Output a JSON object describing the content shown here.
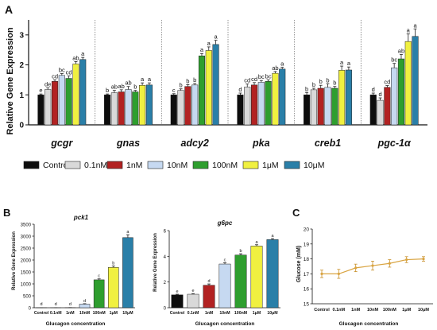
{
  "legend": {
    "items": [
      {
        "label": "Control",
        "color": "#0d0d0d"
      },
      {
        "label": "0.1nM",
        "color": "#d9d9d9"
      },
      {
        "label": "1nM",
        "color": "#b22222"
      },
      {
        "label": "10nM",
        "color": "#c6d9f1"
      },
      {
        "label": "100nM",
        "color": "#2e9e2e"
      },
      {
        "label": "1μM",
        "color": "#f0f040"
      },
      {
        "label": "10μM",
        "color": "#2a7fa8"
      }
    ]
  },
  "chart_data": [
    {
      "panel": "A",
      "type": "bar",
      "ylabel": "Relative Gene Expression",
      "ylim": [
        0,
        3.5
      ],
      "yticks": [
        "0",
        "1",
        "2",
        "3"
      ],
      "legend_position": "below",
      "series_names": [
        "Control",
        "0.1nM",
        "1nM",
        "10nM",
        "100nM",
        "1μM",
        "10μM"
      ],
      "groups": [
        {
          "gene": "gcgr",
          "values": [
            1.0,
            1.18,
            1.45,
            1.65,
            1.55,
            2.03,
            2.18
          ],
          "errors": [
            0.03,
            0.05,
            0.05,
            0.06,
            0.08,
            0.08,
            0.07
          ],
          "letters": [
            "e",
            "de",
            "cd",
            "bc",
            "cd",
            "ab",
            "a"
          ]
        },
        {
          "gene": "gnas",
          "values": [
            1.0,
            1.07,
            1.1,
            1.18,
            1.1,
            1.32,
            1.33
          ],
          "errors": [
            0.03,
            0.08,
            0.07,
            0.1,
            0.05,
            0.08,
            0.07
          ],
          "letters": [
            "b",
            "ab",
            "ab",
            "ab",
            "b",
            "a",
            "a"
          ]
        },
        {
          "gene": "adcy2",
          "values": [
            1.0,
            1.15,
            1.28,
            1.33,
            2.3,
            2.48,
            2.68
          ],
          "errors": [
            0.04,
            0.05,
            0.06,
            0.05,
            0.08,
            0.12,
            0.14
          ],
          "letters": [
            "c",
            "b",
            "b",
            "b",
            "a",
            "a",
            "a"
          ]
        },
        {
          "gene": "pka",
          "values": [
            1.0,
            1.26,
            1.33,
            1.42,
            1.45,
            1.72,
            1.86
          ],
          "errors": [
            0.06,
            0.1,
            0.08,
            0.06,
            0.05,
            0.06,
            0.06
          ],
          "letters": [
            "d",
            "cd",
            "cd",
            "bc",
            "bc",
            "ab",
            "a"
          ]
        },
        {
          "gene": "creb1",
          "values": [
            1.0,
            1.17,
            1.22,
            1.25,
            1.22,
            1.82,
            1.83
          ],
          "errors": [
            0.08,
            0.05,
            0.1,
            0.12,
            0.06,
            0.14,
            0.1
          ],
          "letters": [
            "b",
            "b",
            "b",
            "b",
            "b",
            "a",
            "a"
          ]
        },
        {
          "gene": "pgc-1α",
          "values": [
            1.0,
            0.82,
            1.25,
            1.9,
            2.2,
            2.78,
            2.95
          ],
          "errors": [
            0.06,
            0.08,
            0.06,
            0.15,
            0.15,
            0.25,
            0.25
          ],
          "letters": [
            "d",
            "d",
            "cd",
            "bc",
            "ab",
            "a",
            "a"
          ]
        }
      ]
    },
    {
      "panel": "B",
      "title": "pck1",
      "type": "bar",
      "ylabel": "Relative Gene Expression",
      "xlabel": "Glucagon concentration",
      "yticks": [
        "0",
        "500",
        "1000",
        "1500",
        "2000",
        "2500",
        "3000",
        "3500"
      ],
      "categories": [
        "Control",
        "0.1nM",
        "1nM",
        "10nM",
        "100nM",
        "1μM",
        "10μM"
      ],
      "values": [
        1,
        2,
        5,
        150,
        1170,
        1690,
        2940
      ],
      "errors": [
        0.5,
        1,
        2,
        20,
        40,
        60,
        120
      ],
      "letters": [
        "d",
        "d",
        "d",
        "d",
        "c",
        "b",
        "a"
      ]
    },
    {
      "panel": "B",
      "title": "g6pc",
      "type": "bar",
      "ylabel": "Relative Gene Expression",
      "xlabel": "Glucagon concentration",
      "ylim": [
        0,
        6
      ],
      "yticks": [
        "0",
        "2",
        "4",
        "6"
      ],
      "categories": [
        "Control",
        "0.1nM",
        "1nM",
        "10nM",
        "100nM",
        "1μM",
        "10μM"
      ],
      "values": [
        1.0,
        1.05,
        1.75,
        3.4,
        4.1,
        4.8,
        5.3
      ],
      "errors": [
        0.05,
        0.05,
        0.1,
        0.1,
        0.1,
        0.1,
        0.08
      ],
      "letters": [
        "e",
        "e",
        "d",
        "c",
        "b",
        "a",
        "a"
      ]
    },
    {
      "panel": "C",
      "type": "line",
      "ylabel": "Glucose (mM)",
      "xlabel": "Glucagon concentration",
      "ylim": [
        15,
        20
      ],
      "yticks": [
        "15",
        "16",
        "17",
        "18",
        "19",
        "20"
      ],
      "categories": [
        "Control",
        "0.1nM",
        "1nM",
        "10nM",
        "100nM",
        "1μM",
        "10μM"
      ],
      "values": [
        17.0,
        17.0,
        17.4,
        17.55,
        17.7,
        17.95,
        18.0
      ],
      "errors": [
        0.25,
        0.3,
        0.25,
        0.3,
        0.25,
        0.2,
        0.15
      ]
    }
  ],
  "panels": {
    "a": "A",
    "b": "B",
    "c": "C"
  }
}
